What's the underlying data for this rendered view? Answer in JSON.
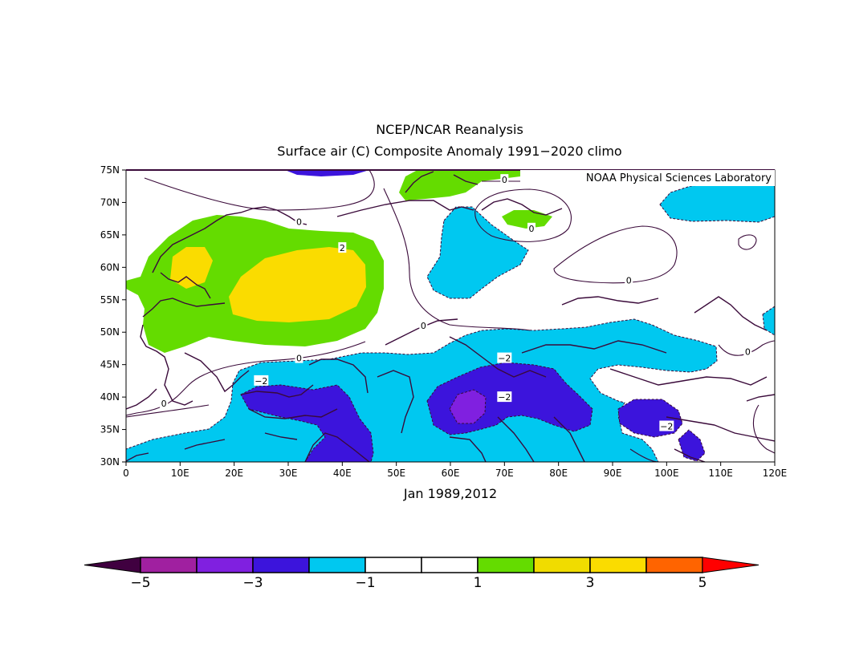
{
  "title": {
    "line1": "NCEP/NCAR Reanalysis",
    "line2": "Surface air (C) Composite Anomaly 1991−2020 climo"
  },
  "credit": "NOAA Physical Sciences Laboratory",
  "subtitle": "Jan 1989,2012",
  "map": {
    "lon_range": [
      0,
      120
    ],
    "lat_range": [
      30,
      75
    ],
    "lon_ticks": [
      "0",
      "10E",
      "20E",
      "30E",
      "40E",
      "50E",
      "60E",
      "70E",
      "80E",
      "90E",
      "100E",
      "110E",
      "120E"
    ],
    "lat_ticks": [
      "30N",
      "35N",
      "40N",
      "45N",
      "50N",
      "55N",
      "60N",
      "65N",
      "70N",
      "75N"
    ],
    "contour_labels": [
      {
        "text": "0",
        "lon": 32,
        "lat": 67
      },
      {
        "text": "2",
        "lon": 40,
        "lat": 63
      },
      {
        "text": "0",
        "lon": 55,
        "lat": 51
      },
      {
        "text": "0",
        "lon": 32,
        "lat": 46
      },
      {
        "text": "0",
        "lon": 7,
        "lat": 39
      },
      {
        "text": "0",
        "lon": 70,
        "lat": 73.5
      },
      {
        "text": "0",
        "lon": 75,
        "lat": 66
      },
      {
        "text": "0",
        "lon": 93,
        "lat": 58
      },
      {
        "text": "0",
        "lon": 115,
        "lat": 47
      },
      {
        "text": "−2",
        "lon": 70,
        "lat": 46
      },
      {
        "text": "−2",
        "lon": 70,
        "lat": 40
      },
      {
        "text": "−2",
        "lon": 25,
        "lat": 42.5
      },
      {
        "text": "−2",
        "lon": 100,
        "lat": 35.5
      }
    ]
  },
  "colorbar": {
    "labels": [
      "−5",
      "−3",
      "−1",
      "1",
      "3",
      "5"
    ],
    "colors": [
      "#400040",
      "#a020a0",
      "#8020e0",
      "#3c14dc",
      "#00c8f0",
      "#ffffff",
      "#ffffff",
      "#64dc00",
      "#f0dc00",
      "#fadc00",
      "#ff6400",
      "#ff0000"
    ],
    "bounds": [
      -5,
      -4,
      -3,
      -2,
      -1,
      0,
      1,
      2,
      3,
      4,
      5
    ]
  },
  "legend_colors": {
    "anom_m2": "#3c14dc",
    "anom_m1": "#00c8f0",
    "anom_p1": "#64dc00",
    "anom_p2": "#fadc00",
    "anom_m3": "#8020e0"
  }
}
